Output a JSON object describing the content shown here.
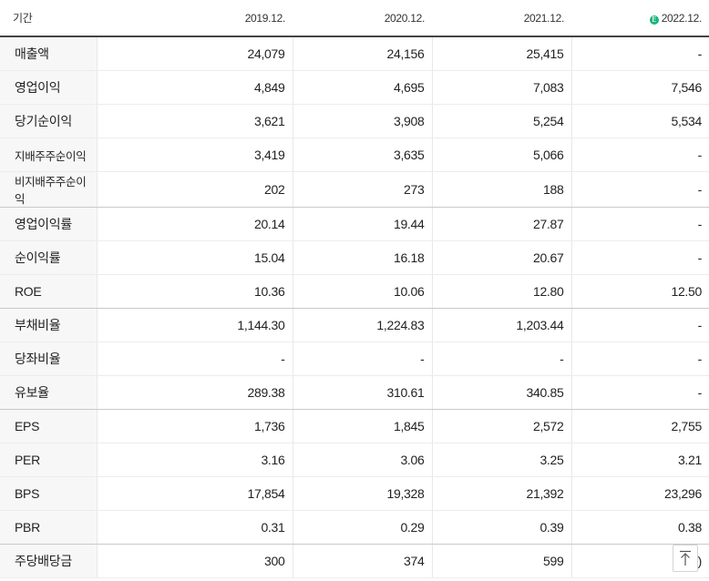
{
  "header": {
    "label_col": "기간",
    "periods": [
      "2019.12.",
      "2020.12.",
      "2021.12.",
      "2022.12."
    ],
    "estimate_icon_glyph": "E"
  },
  "rows": [
    {
      "label": "매출액",
      "values": [
        "24,079",
        "24,156",
        "25,415",
        "-"
      ]
    },
    {
      "label": "영업이익",
      "values": [
        "4,849",
        "4,695",
        "7,083",
        "7,546"
      ]
    },
    {
      "label": "당기순이익",
      "values": [
        "3,621",
        "3,908",
        "5,254",
        "5,534"
      ]
    },
    {
      "label": "지배주주순이익",
      "values": [
        "3,419",
        "3,635",
        "5,066",
        "-"
      ]
    },
    {
      "label": "비지배주주순이익",
      "values": [
        "202",
        "273",
        "188",
        "-"
      ]
    },
    {
      "label": "영업이익률",
      "values": [
        "20.14",
        "19.44",
        "27.87",
        "-"
      ]
    },
    {
      "label": "순이익률",
      "values": [
        "15.04",
        "16.18",
        "20.67",
        "-"
      ]
    },
    {
      "label": "ROE",
      "values": [
        "10.36",
        "10.06",
        "12.80",
        "12.50"
      ]
    },
    {
      "label": "부채비율",
      "values": [
        "1,144.30",
        "1,224.83",
        "1,203.44",
        "-"
      ]
    },
    {
      "label": "당좌비율",
      "values": [
        "-",
        "-",
        "-",
        "-"
      ]
    },
    {
      "label": "유보율",
      "values": [
        "289.38",
        "310.61",
        "340.85",
        "-"
      ]
    },
    {
      "label": "EPS",
      "values": [
        "1,736",
        "1,845",
        "2,572",
        "2,755"
      ]
    },
    {
      "label": "PER",
      "values": [
        "3.16",
        "3.06",
        "3.25",
        "3.21"
      ]
    },
    {
      "label": "BPS",
      "values": [
        "17,854",
        "19,328",
        "21,392",
        "23,296"
      ]
    },
    {
      "label": "PBR",
      "values": [
        "0.31",
        "0.29",
        "0.39",
        "0.38"
      ]
    },
    {
      "label": "주당배당금",
      "values": [
        "300",
        "374",
        "599",
        ")"
      ]
    }
  ],
  "colors": {
    "label_bg": "#f7f7f7",
    "estimate_icon": "#19b47a",
    "header_border": "#444444"
  },
  "icons": {
    "estimate": "estimate-badge-icon",
    "scroll_top": "arrow-up-icon"
  }
}
